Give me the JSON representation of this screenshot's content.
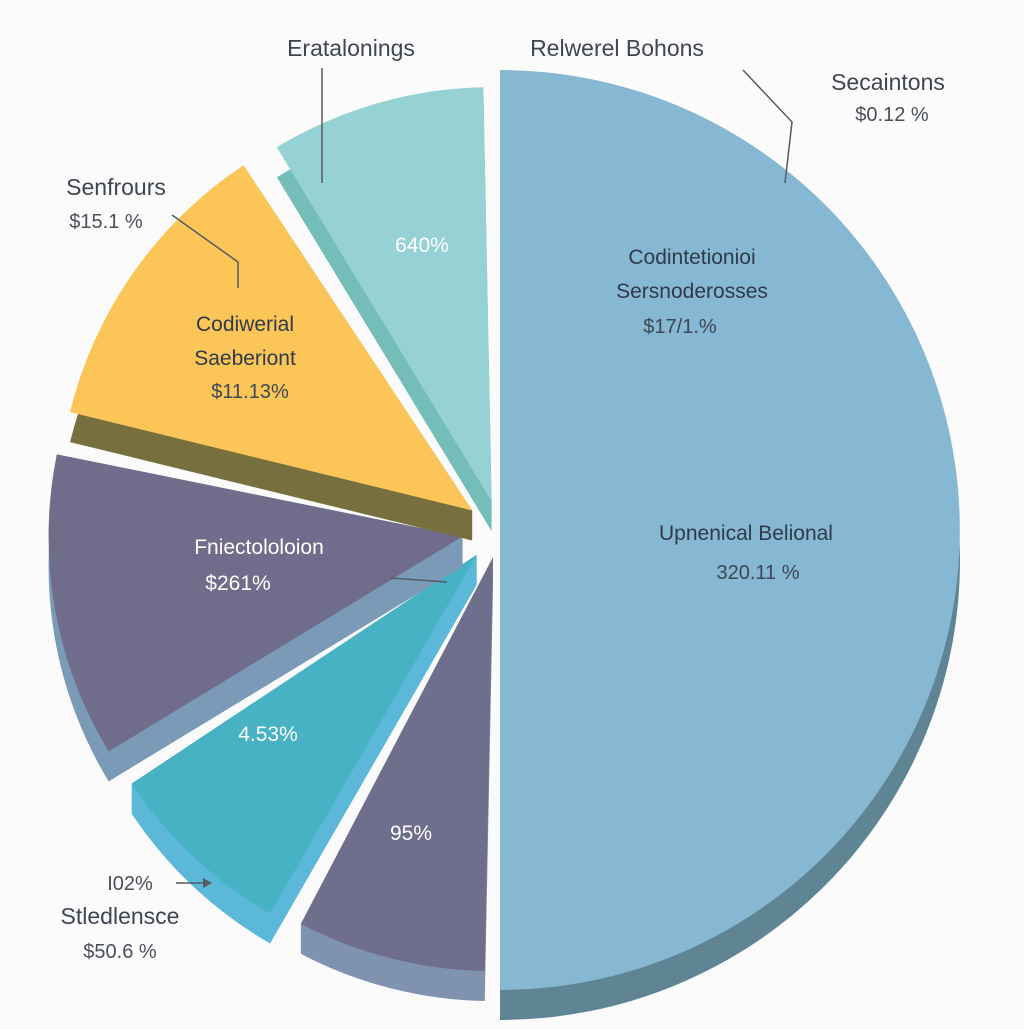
{
  "chart_data": {
    "type": "pie",
    "slices": [
      {
        "name": "Upnenical Belional",
        "value_label": "320.11 %",
        "percent": 50.0,
        "color": "#86b8d3",
        "side": "#5f8595"
      },
      {
        "name": "",
        "value_label": "95%",
        "percent": 8.0,
        "color": "#6f6e8c",
        "side": "#7f93b0"
      },
      {
        "name": "",
        "value_label": "4.53%",
        "percent": 8.0,
        "color": "#47b2c4",
        "side": "#5bb8d8"
      },
      {
        "name": "Fniectololoion",
        "value_label": "$261%",
        "percent": 12.5,
        "color": "#6f6d8b",
        "side": "#7a9ab8"
      },
      {
        "name": "Codiwerial Saeberiont",
        "value_label": "$11.13%",
        "percent": 12.5,
        "color": "#fcc558",
        "side": "#77703e"
      },
      {
        "name": "",
        "value_label": "640%",
        "percent": 9.0,
        "color": "#96d1d4",
        "side": "#74bdb8"
      }
    ],
    "annotations": [
      {
        "name": "Eratalonings",
        "value_label": ""
      },
      {
        "name": "Relwerel Bohons",
        "value_label": ""
      },
      {
        "name": "Secaintons",
        "value_label": "$0.12 %"
      },
      {
        "name": "Codintetionioi Sersnoderosses",
        "value_label": "$17/1.%"
      },
      {
        "name": "Senfrours",
        "value_label": "$15.1 %"
      },
      {
        "name": "Stledlensce",
        "value_label": "$50.6 %",
        "prefix": "I02%"
      }
    ]
  }
}
